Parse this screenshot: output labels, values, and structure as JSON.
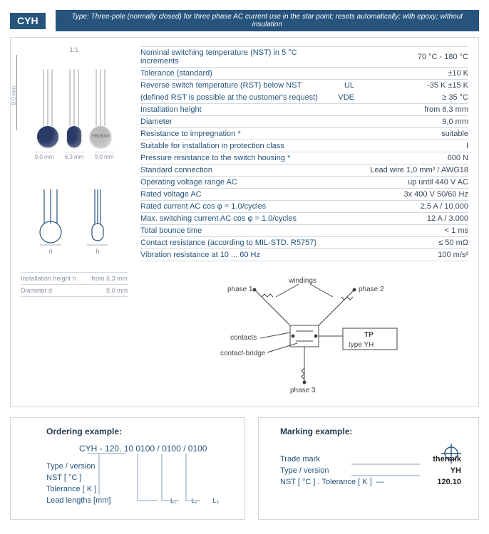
{
  "header": {
    "code": "CYH",
    "type_text": "Type: Three-pole (normally closed) for three phase AC current use in the star point; resets automatically; with epoxy; without insulation"
  },
  "photo": {
    "scale": "1:1",
    "dims": [
      "9,0 mm",
      "6,3 mm",
      "9,0 mm"
    ],
    "side_label": "9,0 mm",
    "marking_hint": "YH13010"
  },
  "outline": {
    "labels": [
      "d",
      "h"
    ]
  },
  "mini_table": [
    {
      "label": "Installation height h",
      "value": "from 6,3 mm"
    },
    {
      "label": "Diameter d",
      "value": "9,0 mm"
    }
  ],
  "specs": [
    {
      "label": "Nominal switching temperature (NST) in 5 °C increments",
      "mid": "",
      "value": "70 °C - 180 °C"
    },
    {
      "label": "Tolerance (standard)",
      "mid": "",
      "value": "±10 K"
    },
    {
      "label": "Reverse switch temperature (RST) below NST",
      "mid": "UL",
      "value": "-35 K ±15 K"
    },
    {
      "label": "(defined RST is possible at the customer's request)",
      "mid": "VDE",
      "value": "≥ 35 °C"
    },
    {
      "label": "Installation height",
      "mid": "",
      "value": "from 6,3 mm"
    },
    {
      "label": "Diameter",
      "mid": "",
      "value": "9,0 mm"
    },
    {
      "label": "Resistance to impregnation *",
      "mid": "",
      "value": "suitable"
    },
    {
      "label": "Suitable for installation in protection class",
      "mid": "",
      "value": "I"
    },
    {
      "label": "Pressure resistance to the switch housing *",
      "mid": "",
      "value": "600 N"
    },
    {
      "label": "Standard connection",
      "mid": "",
      "value": "Lead wire 1,0 mm² / AWG18"
    },
    {
      "label": "Operating voltage range AC",
      "mid": "",
      "value": "up until 440 V AC"
    },
    {
      "label": "Rated voltage AC",
      "mid": "",
      "value": "3x 400 V 50/60 Hz"
    },
    {
      "label": "Rated current AC cos φ = 1.0/cycles",
      "mid": "",
      "value": "2,5 A / 10.000"
    },
    {
      "label": "Max. switching current AC cos φ = 1.0/cycles",
      "mid": "",
      "value": "12 A / 3.000"
    },
    {
      "label": "Total bounce time",
      "mid": "",
      "value": "< 1 ms"
    },
    {
      "label": "Contact resistance (according to MIL-STD. R5757)",
      "mid": "",
      "value": "≤ 50 mΩ"
    },
    {
      "label": "Vibration resistance at 10 ... 60 Hz",
      "mid": "",
      "value": "100 m/s²"
    }
  ],
  "schematic": {
    "phase1": "phase 1",
    "phase2": "phase 2",
    "phase3": "phase 3",
    "windings": "windings",
    "contacts": "contacts",
    "contact_bridge": "contact-bridge",
    "tp_line1": "TP",
    "tp_line2": "type  YH"
  },
  "ordering": {
    "title": "Ordering example:",
    "code": "CYH - 120. 10 0100 / 0100 / 0100",
    "lines": [
      "Type / version",
      "NST [ °C ]",
      "Tolerance [ K ]",
      "Lead lengths [mm]"
    ],
    "sub_l": [
      "L₁",
      "L₂",
      "L₃"
    ]
  },
  "marking": {
    "title": "Marking example:",
    "lines": [
      {
        "label": "Trade mark",
        "value": "thermik"
      },
      {
        "label": "Type / version",
        "value": "YH"
      },
      {
        "label": "NST [ °C ] . Tolerance [ K ]",
        "value": "120.10"
      }
    ]
  }
}
